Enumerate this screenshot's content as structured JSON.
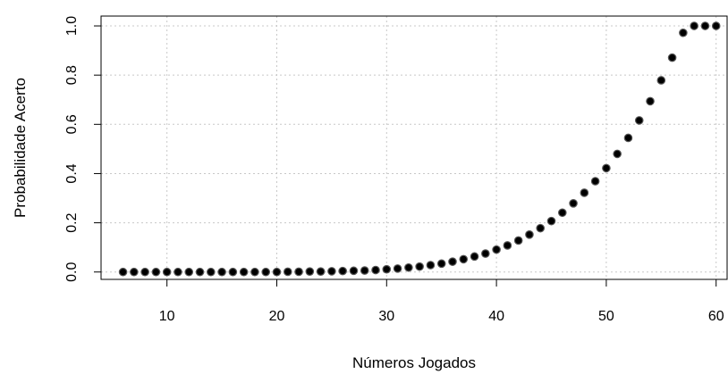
{
  "chart_data": {
    "type": "scatter",
    "xlabel": "Números Jogados",
    "ylabel": "Probabilidade Acerto",
    "xlim": [
      4,
      61
    ],
    "ylim": [
      -0.03,
      1.04
    ],
    "x_ticks": [
      10,
      20,
      30,
      40,
      50,
      60
    ],
    "y_ticks": [
      0.0,
      0.2,
      0.4,
      0.6,
      0.8,
      1.0
    ],
    "x_tick_labels": [
      "10",
      "20",
      "30",
      "40",
      "50",
      "60"
    ],
    "y_tick_labels": [
      "0.0",
      "0.2",
      "0.4",
      "0.6",
      "0.8",
      "1.0"
    ],
    "grid": true,
    "series": [
      {
        "x": [
          6,
          7,
          8,
          9,
          10,
          11,
          12,
          13,
          14,
          15,
          16,
          17,
          18,
          19,
          20,
          21,
          22,
          23,
          24,
          25,
          26,
          27,
          28,
          29,
          30,
          31,
          32,
          33,
          34,
          35,
          36,
          37,
          38,
          39,
          40,
          41,
          42,
          43,
          44,
          45,
          46,
          47,
          48,
          49,
          50,
          51,
          52,
          53,
          54,
          55,
          56,
          57,
          58,
          59,
          60
        ],
        "y": [
          0.0,
          0.0,
          0.0,
          0.0,
          0.0,
          0.0,
          0.0,
          0.0,
          0.0,
          0.0,
          0.0,
          0.0,
          0.0,
          0.0,
          0.0,
          0.001,
          0.001,
          0.002,
          0.002,
          0.003,
          0.004,
          0.005,
          0.006,
          0.008,
          0.011,
          0.014,
          0.018,
          0.022,
          0.028,
          0.034,
          0.042,
          0.052,
          0.063,
          0.075,
          0.091,
          0.108,
          0.128,
          0.152,
          0.178,
          0.207,
          0.241,
          0.279,
          0.322,
          0.369,
          0.422,
          0.48,
          0.545,
          0.616,
          0.694,
          0.779,
          0.871,
          0.972,
          1.0,
          1.0,
          1.0
        ]
      }
    ]
  }
}
